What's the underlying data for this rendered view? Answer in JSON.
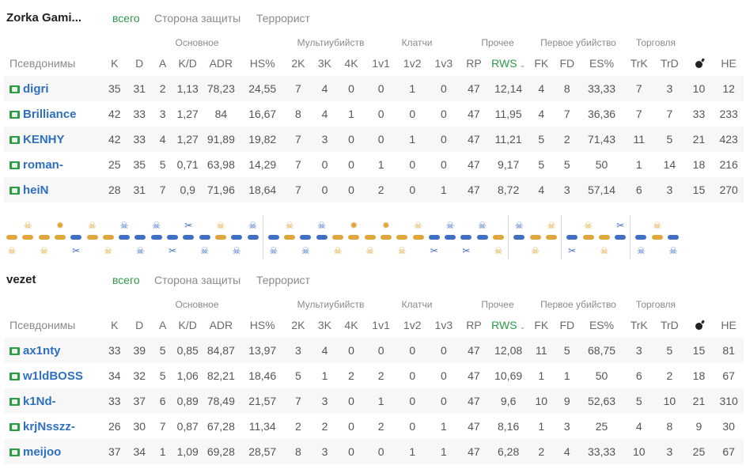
{
  "tabs": {
    "all": "всего",
    "ct": "Сторона защиты",
    "t": "Террорист"
  },
  "groups": {
    "basic": "Основное",
    "multi": "Мультиубийств",
    "clutch": "Клатчи",
    "other": "Прочее",
    "first": "Первое убийство",
    "trade": "Торговля"
  },
  "columns": [
    "Псевдонимы",
    "K",
    "D",
    "A",
    "K/D",
    "ADR",
    "HS%",
    "2K",
    "3K",
    "4K",
    "1v1",
    "1v2",
    "1v3",
    "RP",
    "RWS",
    "FK",
    "FD",
    "ES%",
    "TrK",
    "TrD",
    "bomb-icon",
    "HE"
  ],
  "rws_sort_icon": "chevron-down-icon",
  "colors": {
    "accent_green": "#2e9b47",
    "player_blue": "#2f6fc0",
    "ct_blue": "#3f6fc4",
    "t_orange": "#e0a63c"
  },
  "teams": [
    {
      "name": "Zorka Gami...",
      "players": [
        {
          "alias": "digri",
          "stats": [
            "35",
            "31",
            "2",
            "1,13",
            "78,23",
            "24,55",
            "7",
            "4",
            "0",
            "0",
            "1",
            "0",
            "47",
            "12,14",
            "4",
            "8",
            "33,33",
            "7",
            "3",
            "10",
            "12"
          ]
        },
        {
          "alias": "Brilliance",
          "stats": [
            "42",
            "33",
            "3",
            "1,27",
            "84",
            "16,67",
            "8",
            "4",
            "1",
            "0",
            "0",
            "0",
            "47",
            "11,95",
            "4",
            "7",
            "36,36",
            "7",
            "7",
            "33",
            "233"
          ]
        },
        {
          "alias": "KENHY",
          "stats": [
            "42",
            "33",
            "4",
            "1,27",
            "91,89",
            "19,82",
            "7",
            "3",
            "0",
            "0",
            "1",
            "0",
            "47",
            "11,21",
            "5",
            "2",
            "71,43",
            "11",
            "5",
            "21",
            "423"
          ]
        },
        {
          "alias": "roman-",
          "stats": [
            "25",
            "35",
            "5",
            "0,71",
            "63,98",
            "14,29",
            "7",
            "0",
            "0",
            "1",
            "0",
            "0",
            "47",
            "9,17",
            "5",
            "5",
            "50",
            "1",
            "14",
            "18",
            "216"
          ]
        },
        {
          "alias": "heiN",
          "stats": [
            "28",
            "31",
            "7",
            "0,9",
            "71,96",
            "18,64",
            "7",
            "0",
            "0",
            "2",
            "0",
            "1",
            "47",
            "8,72",
            "4",
            "3",
            "57,14",
            "6",
            "3",
            "15",
            "270"
          ]
        }
      ]
    },
    {
      "name": "vezet",
      "players": [
        {
          "alias": "ax1nty",
          "stats": [
            "33",
            "39",
            "5",
            "0,85",
            "84,87",
            "13,97",
            "3",
            "4",
            "0",
            "0",
            "0",
            "0",
            "47",
            "12,08",
            "11",
            "5",
            "68,75",
            "3",
            "5",
            "15",
            "81"
          ]
        },
        {
          "alias": "w1ldBOSS",
          "stats": [
            "34",
            "32",
            "5",
            "1,06",
            "82,21",
            "18,46",
            "5",
            "1",
            "2",
            "2",
            "0",
            "0",
            "47",
            "10,69",
            "1",
            "1",
            "50",
            "6",
            "2",
            "18",
            "67"
          ]
        },
        {
          "alias": "k1Nd-",
          "stats": [
            "33",
            "37",
            "6",
            "0,89",
            "78,49",
            "21,57",
            "7",
            "3",
            "0",
            "1",
            "0",
            "0",
            "47",
            "9,6",
            "10",
            "9",
            "52,63",
            "5",
            "10",
            "21",
            "310"
          ]
        },
        {
          "alias": "krjNsszz-",
          "stats": [
            "26",
            "30",
            "7",
            "0,87",
            "67,28",
            "11,34",
            "2",
            "2",
            "0",
            "2",
            "0",
            "1",
            "47",
            "8,16",
            "1",
            "3",
            "25",
            "4",
            "8",
            "9",
            "30"
          ]
        },
        {
          "alias": "meijoo",
          "stats": [
            "37",
            "34",
            "1",
            "1,09",
            "69,28",
            "28,57",
            "8",
            "3",
            "0",
            "0",
            "1",
            "1",
            "47",
            "6,28",
            "2",
            "4",
            "33,33",
            "10",
            "3",
            "25",
            "67"
          ]
        }
      ]
    }
  ],
  "rounds": [
    {
      "winner": "t",
      "icon": "skull-icon"
    },
    {
      "winner": "t",
      "icon": "skull-icon"
    },
    {
      "winner": "t",
      "icon": "skull-icon"
    },
    {
      "winner": "t",
      "icon": "explosion-icon"
    },
    {
      "winner": "ct",
      "icon": "defuse-icon"
    },
    {
      "winner": "t",
      "icon": "skull-icon"
    },
    {
      "winner": "t",
      "icon": "skull-icon"
    },
    {
      "winner": "ct",
      "icon": "skull-icon"
    },
    {
      "winner": "ct",
      "icon": "skull-icon"
    },
    {
      "winner": "ct",
      "icon": "skull-icon"
    },
    {
      "winner": "ct",
      "icon": "defuse-icon"
    },
    {
      "winner": "ct",
      "icon": "defuse-icon"
    },
    {
      "winner": "ct",
      "icon": "skull-icon"
    },
    {
      "winner": "t",
      "icon": "skull-icon"
    },
    {
      "winner": "ct",
      "icon": "skull-icon"
    },
    {
      "winner": "ct",
      "icon": "skull-icon"
    },
    {
      "winner": "ct",
      "icon": "skull-icon"
    },
    {
      "winner": "t",
      "icon": "skull-icon"
    },
    {
      "winner": "ct",
      "icon": "skull-icon"
    },
    {
      "winner": "ct",
      "icon": "skull-icon"
    },
    {
      "winner": "t",
      "icon": "skull-icon"
    },
    {
      "winner": "t",
      "icon": "explosion-icon"
    },
    {
      "winner": "t",
      "icon": "skull-icon"
    },
    {
      "winner": "t",
      "icon": "explosion-icon"
    },
    {
      "winner": "t",
      "icon": "skull-icon"
    },
    {
      "winner": "t",
      "icon": "skull-icon"
    },
    {
      "winner": "ct",
      "icon": "defuse-icon"
    },
    {
      "winner": "ct",
      "icon": "skull-icon"
    },
    {
      "winner": "ct",
      "icon": "defuse-icon"
    },
    {
      "winner": "ct",
      "icon": "skull-icon"
    },
    {
      "winner": "t",
      "icon": "skull-icon"
    },
    {
      "winner": "ct",
      "icon": "skull-icon"
    },
    {
      "winner": "t",
      "icon": "skull-icon"
    },
    {
      "winner": "t",
      "icon": "skull-icon"
    },
    {
      "winner": "ct",
      "icon": "defuse-icon"
    },
    {
      "winner": "t",
      "icon": "skull-icon"
    },
    {
      "winner": "t",
      "icon": "skull-icon"
    },
    {
      "winner": "ct",
      "icon": "defuse-icon"
    },
    {
      "winner": "ct",
      "icon": "skull-icon"
    },
    {
      "winner": "t",
      "icon": "skull-icon"
    },
    {
      "winner": "ct",
      "icon": "skull-icon"
    }
  ]
}
